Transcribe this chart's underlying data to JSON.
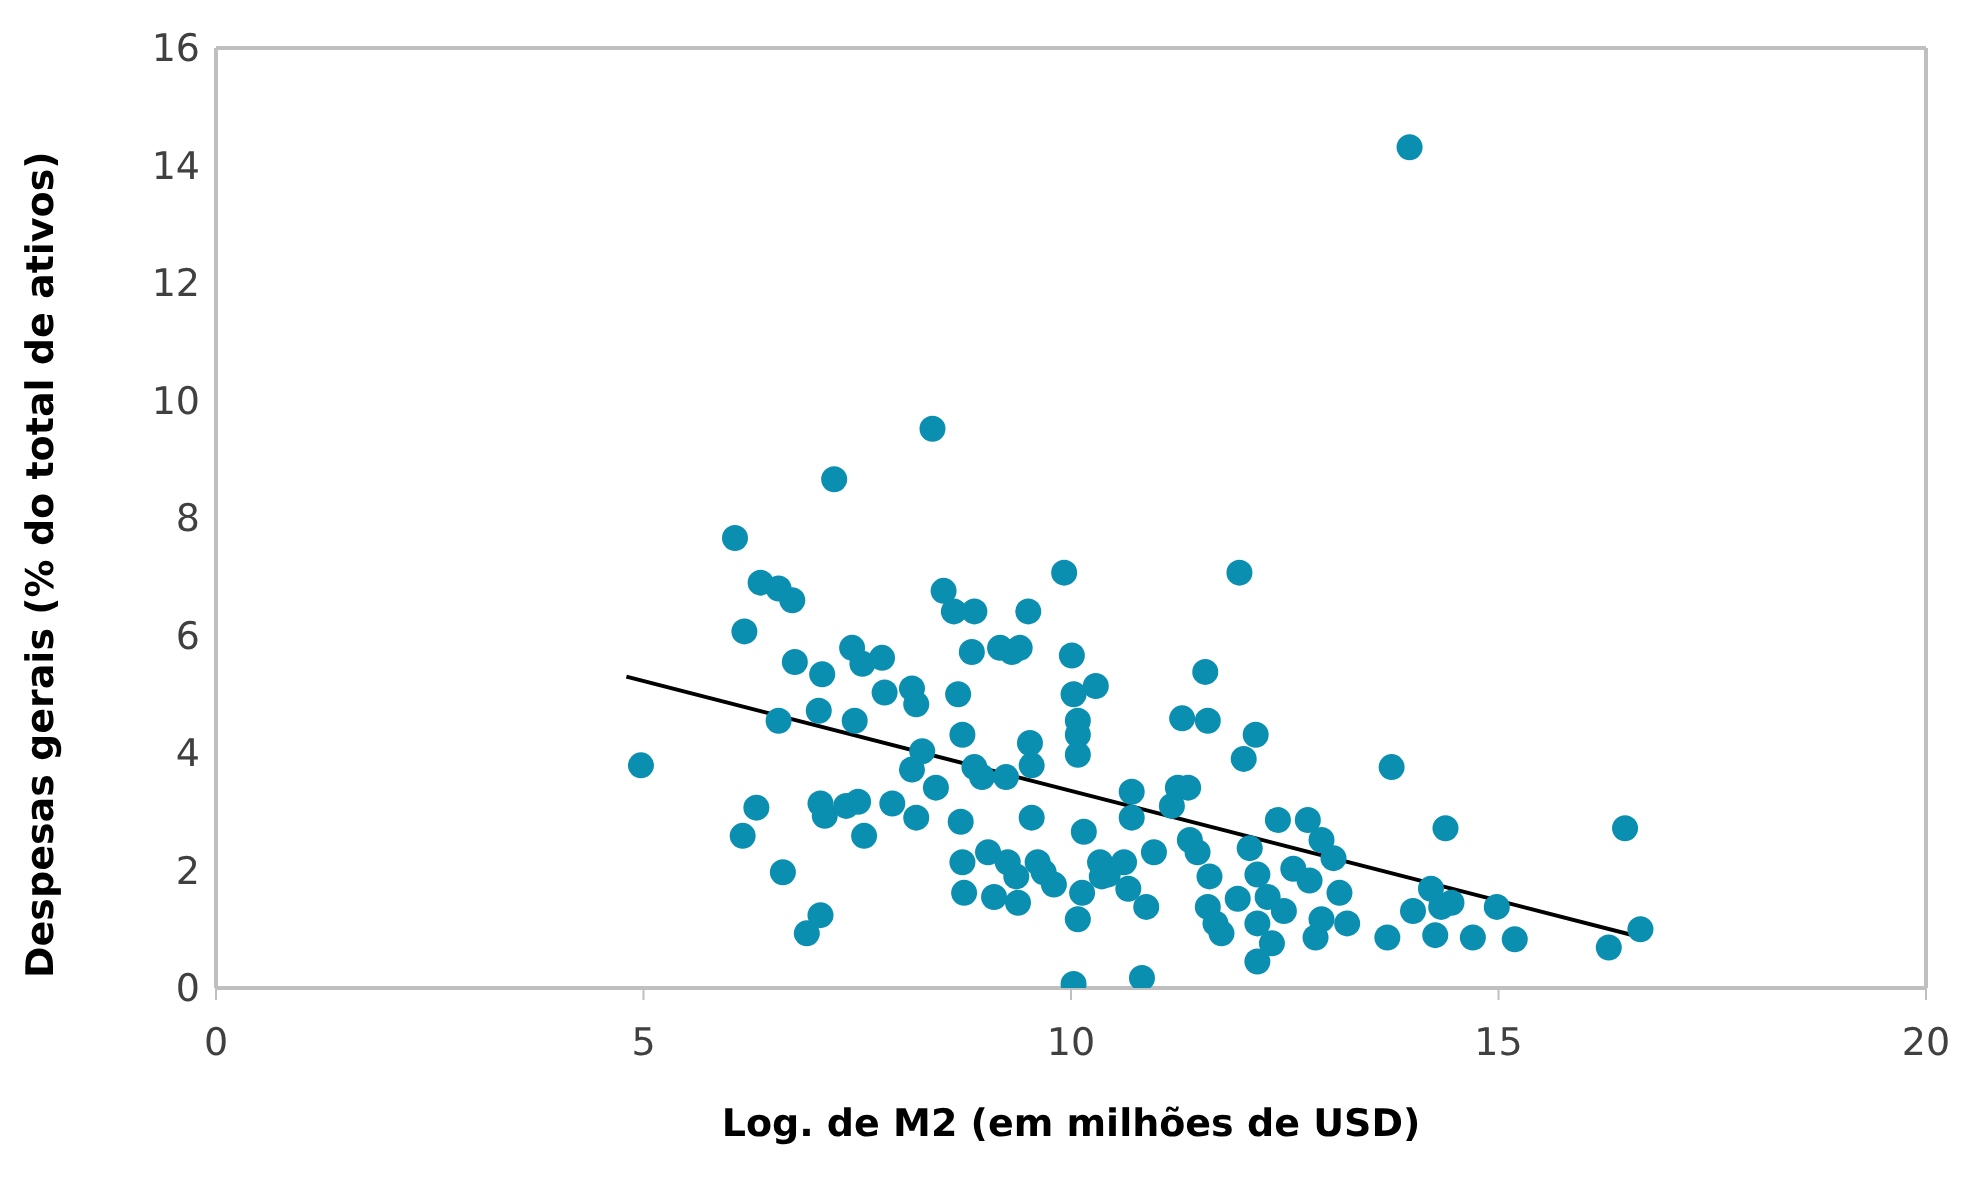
{
  "chart_data": {
    "type": "scatter",
    "xlabel": "Log. de M2 (em milhões de USD)",
    "ylabel": "Despesas gerais (% do total de ativos)",
    "xlim": [
      0,
      20
    ],
    "xticks": [
      0,
      5,
      10,
      15,
      20
    ],
    "ylim": [
      0,
      16
    ],
    "yticks": [
      0,
      2,
      4,
      6,
      8,
      10,
      12,
      14,
      16
    ],
    "grid": false,
    "marker": "circle",
    "series": [
      {
        "color": "#0a8fb0",
        "x": [
          4.97,
          6.07,
          6.18,
          6.16,
          6.32,
          6.37,
          6.58,
          6.74,
          6.58,
          6.63,
          6.77,
          6.91,
          7.05,
          7.07,
          7.09,
          7.07,
          7.12,
          7.23,
          7.37,
          7.44,
          7.47,
          7.51,
          7.58,
          7.56,
          7.79,
          7.91,
          7.82,
          8.14,
          8.19,
          8.14,
          8.19,
          8.26,
          8.38,
          8.42,
          8.51,
          8.63,
          8.68,
          8.73,
          8.71,
          8.73,
          8.75,
          8.84,
          8.87,
          8.87,
          8.96,
          9.03,
          9.1,
          9.17,
          9.24,
          9.31,
          9.26,
          9.36,
          9.38,
          9.4,
          9.5,
          9.52,
          9.54,
          9.54,
          9.61,
          9.68,
          9.8,
          9.92,
          10.01,
          10.03,
          10.08,
          10.08,
          10.08,
          10.03,
          10.08,
          10.13,
          10.15,
          10.29,
          10.34,
          10.36,
          10.43,
          10.62,
          10.67,
          10.71,
          10.71,
          10.83,
          10.88,
          10.97,
          11.18,
          11.25,
          11.3,
          11.37,
          11.39,
          11.48,
          11.57,
          11.6,
          11.62,
          11.6,
          11.69,
          11.76,
          11.97,
          12.02,
          11.95,
          12.09,
          12.16,
          12.18,
          12.18,
          12.18,
          12.3,
          12.35,
          12.42,
          12.49,
          12.6,
          12.77,
          12.79,
          12.86,
          12.93,
          12.93,
          13.07,
          13.14,
          13.23,
          13.7,
          13.75,
          13.96,
          14.0,
          14.21,
          14.26,
          14.33,
          14.38,
          14.45,
          14.7,
          14.98,
          15.19,
          16.29,
          16.48,
          16.66
        ],
        "values": [
          3.79,
          7.66,
          6.07,
          2.59,
          3.07,
          6.9,
          6.8,
          6.6,
          4.55,
          1.97,
          5.55,
          0.93,
          4.72,
          1.24,
          5.34,
          3.14,
          2.93,
          8.66,
          3.1,
          5.79,
          4.55,
          3.17,
          2.59,
          5.52,
          5.62,
          3.14,
          5.03,
          5.1,
          4.83,
          3.72,
          2.9,
          4.03,
          9.52,
          3.41,
          6.76,
          6.41,
          5.0,
          4.31,
          2.83,
          2.14,
          1.62,
          5.72,
          6.41,
          3.76,
          3.59,
          2.31,
          1.55,
          5.79,
          3.59,
          5.72,
          2.14,
          1.9,
          1.45,
          5.79,
          6.41,
          4.17,
          3.79,
          2.9,
          2.14,
          1.97,
          1.76,
          7.07,
          5.66,
          5.0,
          4.55,
          4.31,
          3.97,
          0.07,
          1.17,
          1.62,
          2.66,
          5.14,
          2.14,
          1.9,
          1.93,
          2.14,
          1.69,
          3.34,
          2.9,
          0.17,
          1.38,
          2.31,
          3.1,
          3.41,
          4.59,
          3.41,
          2.52,
          2.31,
          5.38,
          4.55,
          1.9,
          1.38,
          1.1,
          0.93,
          7.07,
          3.9,
          1.52,
          2.38,
          4.31,
          0.45,
          1.93,
          1.1,
          1.55,
          0.76,
          2.86,
          1.31,
          2.03,
          2.86,
          1.83,
          0.86,
          2.52,
          1.17,
          2.21,
          1.62,
          1.1,
          0.86,
          3.76,
          14.31,
          1.31,
          1.69,
          0.9,
          1.38,
          2.72,
          1.45,
          0.86,
          1.38,
          0.83,
          0.69,
          2.72,
          1.0
        ]
      },
      {
        "type": "line",
        "marker": "none",
        "color": "#000000",
        "x": [
          4.8,
          16.7
        ],
        "values": [
          5.3,
          0.85
        ]
      }
    ]
  }
}
